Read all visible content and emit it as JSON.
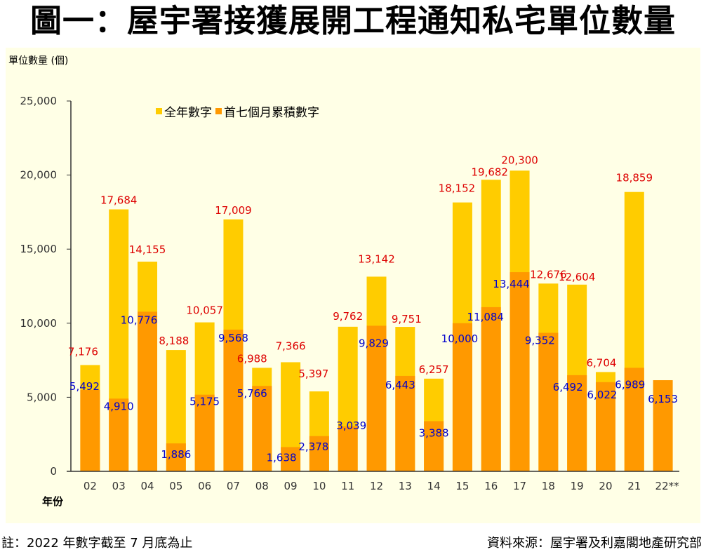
{
  "title": "圖一：屋宇署接獲展開工程通知私宅單位數量",
  "footer": {
    "note": "註：2022 年數字截至 7 月底為止",
    "source": "資料來源：屋宇署及利嘉閣地產研究部"
  },
  "colors": {
    "background": "#ffffe6",
    "full_year": "#ffcc00",
    "first_seven_months": "#ff9900",
    "full_label": "#dd0000",
    "partial_label": "#0000cc"
  },
  "chart_data": {
    "type": "bar",
    "title": "圖一：屋宇署接獲展開工程通知私宅單位數量",
    "xlabel": "年份",
    "ylabel": "單位數量 (個)",
    "ylim": [
      0,
      25000
    ],
    "yticks": [
      0,
      5000,
      10000,
      15000,
      20000,
      25000
    ],
    "ytick_labels": [
      "0",
      "5,000",
      "10,000",
      "15,000",
      "20,000",
      "25,000"
    ],
    "grid": false,
    "legend_position": "top-left",
    "categories": [
      "02",
      "03",
      "04",
      "05",
      "06",
      "07",
      "08",
      "09",
      "10",
      "11",
      "12",
      "13",
      "14",
      "15",
      "16",
      "17",
      "18",
      "19",
      "20",
      "21",
      "22**"
    ],
    "series": [
      {
        "name": "全年數字",
        "values": [
          7176,
          17684,
          14155,
          8188,
          10057,
          17009,
          6988,
          7366,
          5397,
          9762,
          13142,
          9751,
          6257,
          18152,
          19682,
          20300,
          12676,
          12604,
          6704,
          18859,
          null
        ],
        "labels": [
          "7,176",
          "17,684",
          "14,155",
          "8,188",
          "10,057",
          "17,009",
          "6,988",
          "7,366",
          "5,397",
          "9,762",
          "13,142",
          "9,751",
          "6,257",
          "18,152",
          "19,682",
          "20,300",
          "12,676",
          "12,604",
          "6,704",
          "18,859",
          ""
        ]
      },
      {
        "name": "首七個月累積數字",
        "values": [
          5492,
          4910,
          10776,
          1886,
          5175,
          9568,
          5766,
          1638,
          2378,
          3039,
          9829,
          6443,
          3388,
          10000,
          11084,
          13444,
          9352,
          6492,
          6022,
          6989,
          6153
        ],
        "labels": [
          "5,492",
          "4,910",
          "10,776",
          "1,886",
          "5,175",
          "9,568",
          "5,766",
          "1,638",
          "2,378",
          "3,039",
          "9,829",
          "6,443",
          "3,388",
          "10,000",
          "11,084",
          "13,444",
          "9,352",
          "6,492",
          "6,022",
          "6,989",
          "6,153"
        ]
      }
    ]
  }
}
